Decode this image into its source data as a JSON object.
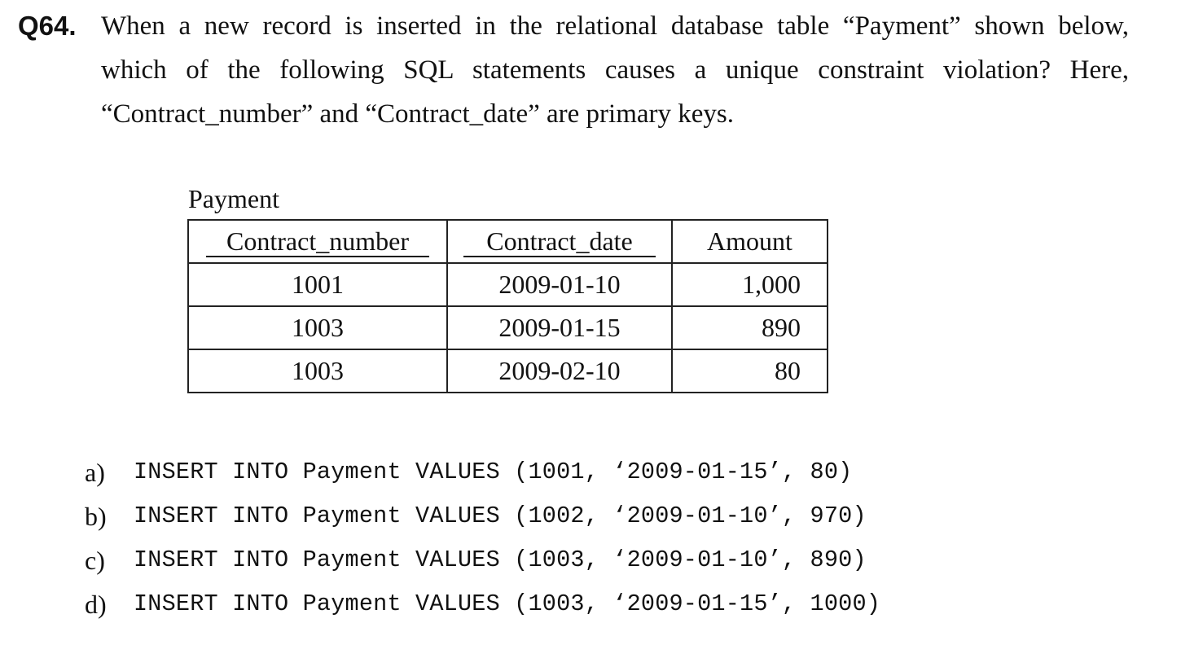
{
  "question": {
    "number": "Q64.",
    "lines": [
      "When a new record is inserted in the relational database table “Payment” shown below,",
      "which of the following SQL statements causes a unique constraint violation?   Here,",
      "“Contract_number” and “Contract_date” are primary keys."
    ]
  },
  "table": {
    "caption": "Payment",
    "headers": [
      "Contract_number",
      "Contract_date",
      "Amount"
    ],
    "primary_key_columns": [
      "Contract_number",
      "Contract_date"
    ],
    "rows": [
      [
        "1001",
        "2009-01-10",
        "1,000"
      ],
      [
        "1003",
        "2009-01-15",
        "890"
      ],
      [
        "1003",
        "2009-02-10",
        "80"
      ]
    ]
  },
  "options": [
    {
      "letter": "a)",
      "sql": "INSERT INTO Payment VALUES (1001, ‘2009-01-15’, 80)"
    },
    {
      "letter": "b)",
      "sql": "INSERT INTO Payment VALUES (1002, ‘2009-01-10’, 970)"
    },
    {
      "letter": "c)",
      "sql": "INSERT INTO Payment VALUES (1003, ‘2009-01-10’, 890)"
    },
    {
      "letter": "d)",
      "sql": "INSERT INTO Payment VALUES (1003, ‘2009-01-15’, 1000)"
    }
  ]
}
